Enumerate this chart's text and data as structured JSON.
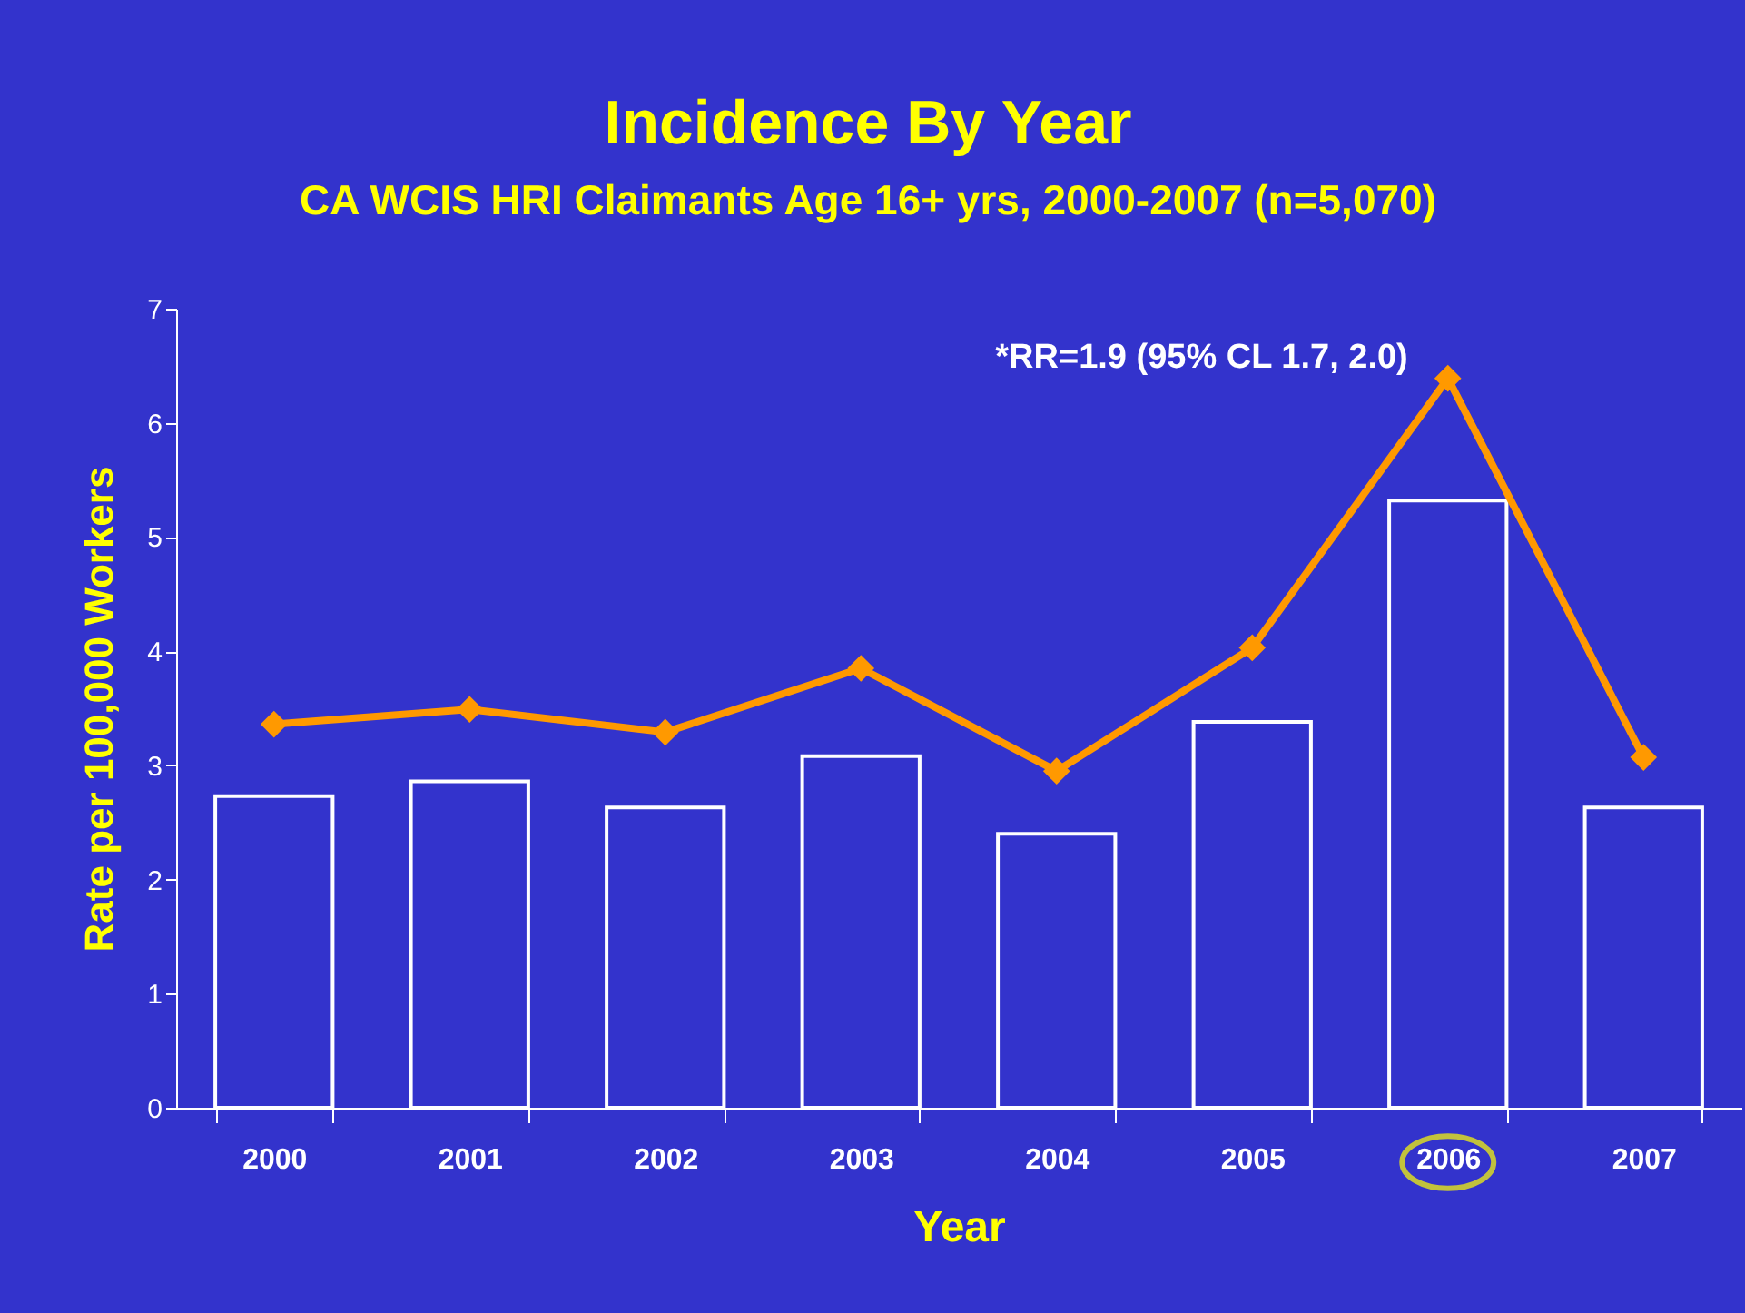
{
  "chart_data": {
    "type": "bar",
    "title": "Incidence By Year",
    "subtitle": "CA WCIS HRI Claimants Age 16+ yrs, 2000-2007 (n=5,070)",
    "xlabel": "Year",
    "ylabel": "Rate per 100,000 Workers",
    "categories": [
      "2000",
      "2001",
      "2002",
      "2003",
      "2004",
      "2005",
      "2006",
      "2007"
    ],
    "series": [
      {
        "color": "#ffffff",
        "values": [
          2.73,
          2.86,
          2.63,
          3.08,
          2.4,
          3.38,
          5.32,
          2.63
        ]
      },
      {
        "type": "line",
        "color": "#ff9900",
        "marker": "diamond",
        "values": [
          3.36,
          3.49,
          3.29,
          3.85,
          2.95,
          4.03,
          6.39,
          3.07
        ]
      }
    ],
    "ylim": [
      0,
      7
    ],
    "yticks": [
      0,
      1,
      2,
      3,
      4,
      5,
      6,
      7
    ],
    "grid": false,
    "annotations": [
      {
        "text": "*RR=1.9 (95% CL 1.7, 2.0)",
        "x": "2006",
        "y": 6.39
      }
    ]
  }
}
